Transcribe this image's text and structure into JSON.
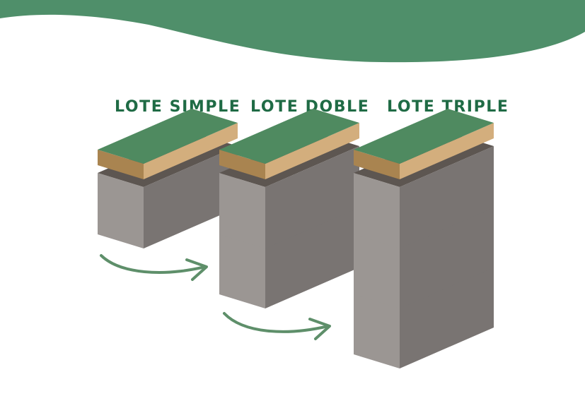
{
  "colors": {
    "wave": "#4f8f6a",
    "label": "#1f6b45",
    "arrow": "#5e8f6a",
    "grass_top": "#4f8a60",
    "soil_front": "#d3ae7d",
    "soil_side": "#a98450",
    "block_front": "#9b9693",
    "block_side": "#797472",
    "block_top": "#5d5651"
  },
  "diagram": {
    "columns": [
      {
        "label": "LOTE SIMPLE",
        "blocks": 1
      },
      {
        "label": "LOTE DOBLE",
        "blocks": 2
      },
      {
        "label": "LOTE TRIPLE",
        "blocks": 3
      }
    ]
  }
}
